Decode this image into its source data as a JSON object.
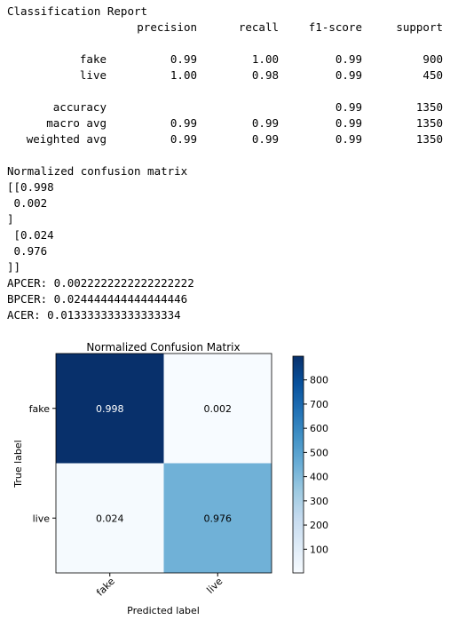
{
  "report": {
    "title": "Classification Report",
    "columns": [
      "precision",
      "recall",
      "f1-score",
      "support"
    ],
    "rows": [
      {
        "label": "fake",
        "cells": [
          "0.99",
          "1.00",
          "0.99",
          "900"
        ]
      },
      {
        "label": "live",
        "cells": [
          "1.00",
          "0.98",
          "0.99",
          "450"
        ]
      },
      {
        "label": "accuracy",
        "cells": [
          null,
          null,
          "0.99",
          "1350"
        ]
      },
      {
        "label": "macro avg",
        "cells": [
          "0.99",
          "0.99",
          "0.99",
          "1350"
        ]
      },
      {
        "label": "weighted avg",
        "cells": [
          "0.99",
          "0.99",
          "0.99",
          "1350"
        ]
      }
    ]
  },
  "matrix_text": {
    "title": "Normalized confusion matrix",
    "lines": [
      "[[0.998",
      " 0.002",
      "]",
      " [0.024",
      " 0.976",
      "]]"
    ]
  },
  "metrics": [
    "APCER: 0.0022222222222222222",
    "BPCER: 0.024444444444444446",
    "ACER: 0.013333333333333334"
  ],
  "chart_data": {
    "type": "heatmap",
    "title": "Normalized Confusion Matrix",
    "xlabel": "Predicted label",
    "ylabel": "True label",
    "x_categories": [
      "fake",
      "live"
    ],
    "y_categories": [
      "fake",
      "live"
    ],
    "values": [
      [
        0.998,
        0.002
      ],
      [
        0.024,
        0.976
      ]
    ],
    "counts": [
      [
        898,
        2
      ],
      [
        11,
        439
      ]
    ],
    "colormap": [
      "#f7fbff",
      "#deebf7",
      "#c6dbef",
      "#9ecae1",
      "#6baed6",
      "#4292c6",
      "#2171b5",
      "#08519c",
      "#08306b"
    ],
    "clim": [
      2,
      898
    ],
    "colorbar_ticks": [
      100,
      200,
      300,
      400,
      500,
      600,
      700,
      800
    ]
  }
}
